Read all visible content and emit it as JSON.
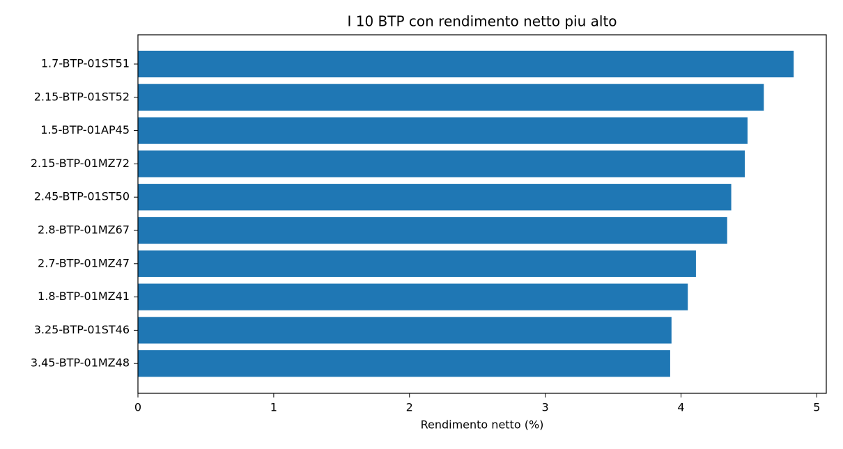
{
  "chart_data": {
    "type": "barh",
    "title": "I 10 BTP con rendimento netto piu alto",
    "xlabel": "Rendimento netto (%)",
    "categories": [
      "1.7-BTP-01ST51",
      "2.15-BTP-01ST52",
      "1.5-BTP-01AP45",
      "2.15-BTP-01MZ72",
      "2.45-BTP-01ST50",
      "2.8-BTP-01MZ67",
      "2.7-BTP-01MZ47",
      "1.8-BTP-01MZ41",
      "3.25-BTP-01ST46",
      "3.45-BTP-01MZ48"
    ],
    "values": [
      4.83,
      4.61,
      4.49,
      4.47,
      4.37,
      4.34,
      4.11,
      4.05,
      3.93,
      3.92
    ],
    "color": "#1f77b4",
    "xlim": [
      0,
      5.07
    ],
    "xticks": [
      0,
      1,
      2,
      3,
      4,
      5
    ],
    "grid": false
  }
}
